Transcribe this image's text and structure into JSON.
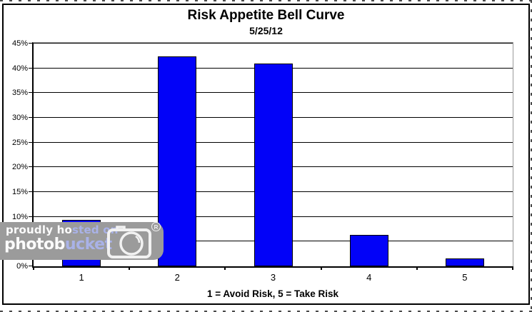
{
  "chart_data": {
    "type": "bar",
    "title": "Risk Appetite Bell Curve",
    "subtitle": "5/25/12",
    "xlabel": "1 = Avoid Risk, 5 = Take Risk",
    "categories": [
      "1",
      "2",
      "3",
      "4",
      "5"
    ],
    "values": [
      9.4,
      42.4,
      40.9,
      6.3,
      1.6
    ],
    "ylim": [
      0,
      45
    ],
    "ytick_step": 5,
    "ytick_labels": [
      "0%",
      "5%",
      "10%",
      "15%",
      "20%",
      "25%",
      "30%",
      "35%",
      "40%",
      "45%"
    ],
    "grid": "horizontal",
    "legend": "none",
    "bar_color": "#0202f8",
    "bar_border_color": "#000000",
    "gridline_color": "#000000",
    "plot_border_color": "#9a9a9a"
  },
  "watermark": {
    "line1_white": "proudly ho",
    "line1_accent": "sted on",
    "line2_white": "photob",
    "line2_accent": "ucket",
    "registered": "R",
    "band_color": "#9b9b9b",
    "accent_color": "#a9b2e8",
    "camera_icon": "camera-icon"
  }
}
